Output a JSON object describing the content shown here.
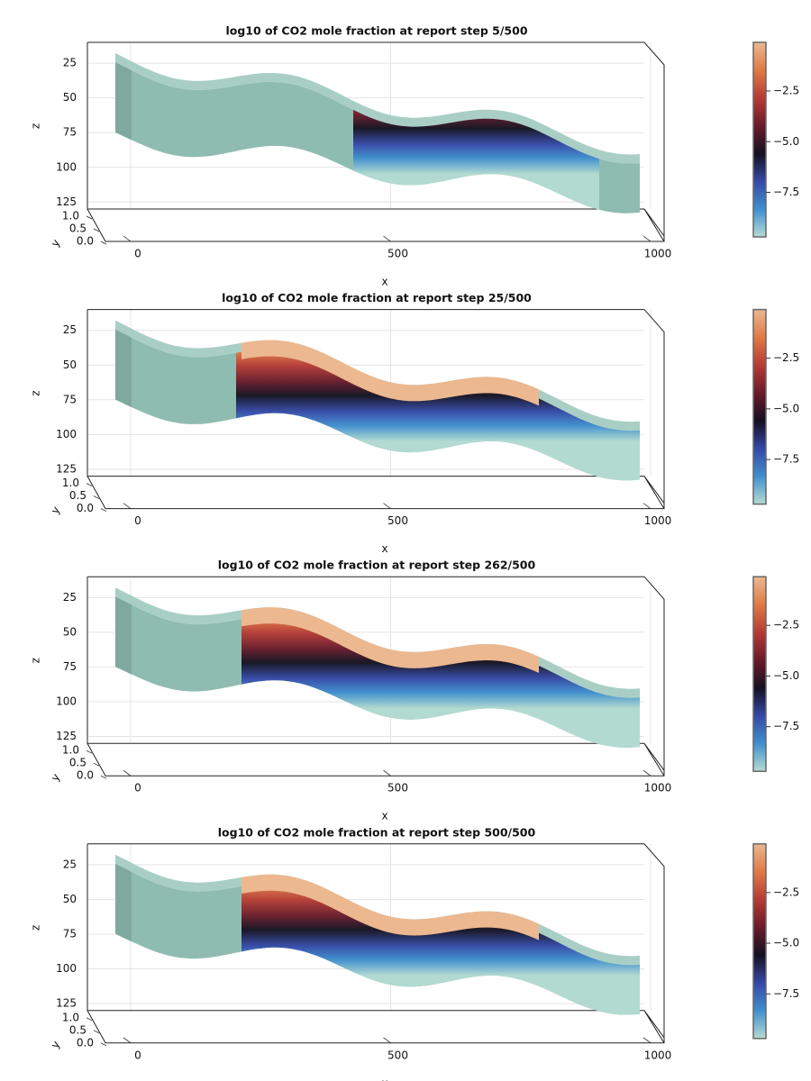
{
  "chart_data": [
    {
      "type": "surface",
      "title": "log10 of CO2 mole fraction at report step 5/500",
      "xlabel": "x",
      "ylabel": "y",
      "zlabel": "z",
      "xlim": [
        -95,
        1000
      ],
      "xticks": [
        0,
        500,
        1000
      ],
      "ylim": [
        0,
        1
      ],
      "yticks": [
        {
          "value": 1,
          "label": "1.0"
        },
        {
          "value": 0.5,
          "label": "0.5"
        },
        {
          "value": 0,
          "label": "0.0"
        }
      ],
      "zlim": [
        10,
        130
      ],
      "zticks": [
        25,
        50,
        75,
        100,
        125
      ],
      "clim": [
        -9.7,
        -0.1
      ],
      "cticks": [
        {
          "value": -2.5,
          "label": "−2.5"
        },
        {
          "value": -5,
          "label": "−5.0"
        },
        {
          "value": -7.5,
          "label": "−7.5"
        }
      ],
      "colormap": [
        "#b4dcd2",
        "#3f8fd0",
        "#3548a8",
        "#141020",
        "#6a1a2a",
        "#b83a34",
        "#e07a44",
        "#ecb890"
      ]
    },
    {
      "type": "surface",
      "title": "log10 of CO2 mole fraction at report step 25/500",
      "xlabel": "x",
      "ylabel": "y",
      "zlabel": "z",
      "xlim": [
        -95,
        1000
      ],
      "xticks": [
        0,
        500,
        1000
      ],
      "ylim": [
        0,
        1
      ],
      "yticks": [
        {
          "value": 1,
          "label": "1.0"
        },
        {
          "value": 0.5,
          "label": "0.5"
        },
        {
          "value": 0,
          "label": "0.0"
        }
      ],
      "zlim": [
        10,
        130
      ],
      "zticks": [
        25,
        50,
        75,
        100,
        125
      ],
      "clim": [
        -9.7,
        -0.1
      ],
      "cticks": [
        {
          "value": -2.5,
          "label": "−2.5"
        },
        {
          "value": -5,
          "label": "−5.0"
        },
        {
          "value": -7.5,
          "label": "−7.5"
        }
      ],
      "colormap": [
        "#b4dcd2",
        "#3f8fd0",
        "#3548a8",
        "#141020",
        "#6a1a2a",
        "#b83a34",
        "#e07a44",
        "#ecb890"
      ]
    },
    {
      "type": "surface",
      "title": "log10 of CO2 mole fraction at report step 262/500",
      "xlabel": "x",
      "ylabel": "y",
      "zlabel": "z",
      "xlim": [
        -95,
        1000
      ],
      "xticks": [
        0,
        500,
        1000
      ],
      "ylim": [
        0,
        1
      ],
      "yticks": [
        {
          "value": 1,
          "label": "1.0"
        },
        {
          "value": 0.5,
          "label": "0.5"
        },
        {
          "value": 0,
          "label": "0.0"
        }
      ],
      "zlim": [
        10,
        130
      ],
      "zticks": [
        25,
        50,
        75,
        100,
        125
      ],
      "clim": [
        -9.7,
        -0.1
      ],
      "cticks": [
        {
          "value": -2.5,
          "label": "−2.5"
        },
        {
          "value": -5,
          "label": "−5.0"
        },
        {
          "value": -7.5,
          "label": "−7.5"
        }
      ],
      "colormap": [
        "#b4dcd2",
        "#3f8fd0",
        "#3548a8",
        "#141020",
        "#6a1a2a",
        "#b83a34",
        "#e07a44",
        "#ecb890"
      ]
    },
    {
      "type": "surface",
      "title": "log10 of CO2 mole fraction at report step 500/500",
      "xlabel": "x",
      "ylabel": "y",
      "zlabel": "z",
      "xlim": [
        -95,
        1000
      ],
      "xticks": [
        0,
        500,
        1000
      ],
      "ylim": [
        0,
        1
      ],
      "yticks": [
        {
          "value": 1,
          "label": "1.0"
        },
        {
          "value": 0.5,
          "label": "0.5"
        },
        {
          "value": 0,
          "label": "0.0"
        }
      ],
      "zlim": [
        10,
        130
      ],
      "zticks": [
        25,
        50,
        75,
        100,
        125
      ],
      "clim": [
        -9.7,
        -0.1
      ],
      "cticks": [
        {
          "value": -2.5,
          "label": "−2.5"
        },
        {
          "value": -5,
          "label": "−5.0"
        },
        {
          "value": -7.5,
          "label": "−7.5"
        }
      ],
      "colormap": [
        "#b4dcd2",
        "#3f8fd0",
        "#3548a8",
        "#141020",
        "#6a1a2a",
        "#b83a34",
        "#e07a44",
        "#ecb890"
      ]
    }
  ]
}
